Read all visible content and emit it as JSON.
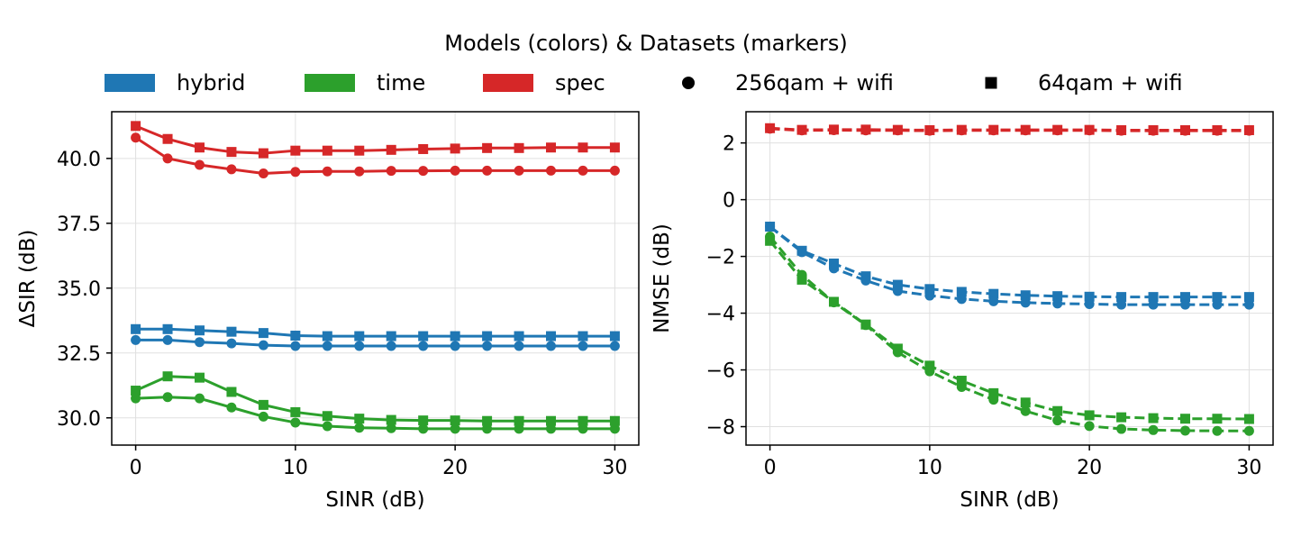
{
  "legend": {
    "title": "Models (colors) & Datasets (markers)",
    "models": [
      {
        "label": "hybrid",
        "color": "#1f77b4"
      },
      {
        "label": "time",
        "color": "#2ca02c"
      },
      {
        "label": "spec",
        "color": "#d62728"
      }
    ],
    "datasets": [
      {
        "label": "256qam + wifi",
        "marker": "circle"
      },
      {
        "label": "64qam + wifi",
        "marker": "square"
      }
    ]
  },
  "chart_data": [
    {
      "type": "line",
      "xlabel": "SINR (dB)",
      "ylabel": "ΔSIR (dB)",
      "xlim": [
        -1.5,
        31.5
      ],
      "ylim": [
        28.95,
        41.8
      ],
      "xticks": [
        0,
        10,
        20,
        30
      ],
      "yticks": [
        30.0,
        32.5,
        35.0,
        37.5,
        40.0
      ],
      "ytick_labels": [
        "30.0",
        "32.5",
        "35.0",
        "37.5",
        "40.0"
      ],
      "line_style": "solid",
      "grid": true,
      "x": [
        0,
        2,
        4,
        6,
        8,
        10,
        12,
        14,
        16,
        18,
        20,
        22,
        24,
        26,
        28,
        30
      ],
      "series": [
        {
          "model": "spec",
          "dataset": "64qam + wifi",
          "marker": "square",
          "color": "#d62728",
          "values": [
            41.25,
            40.75,
            40.42,
            40.25,
            40.2,
            40.3,
            40.3,
            40.3,
            40.33,
            40.36,
            40.38,
            40.4,
            40.4,
            40.42,
            40.42,
            40.42
          ]
        },
        {
          "model": "spec",
          "dataset": "256qam + wifi",
          "marker": "circle",
          "color": "#d62728",
          "values": [
            40.8,
            40.0,
            39.75,
            39.58,
            39.42,
            39.48,
            39.5,
            39.5,
            39.52,
            39.52,
            39.53,
            39.53,
            39.53,
            39.53,
            39.53,
            39.53
          ]
        },
        {
          "model": "hybrid",
          "dataset": "64qam + wifi",
          "marker": "square",
          "color": "#1f77b4",
          "values": [
            33.42,
            33.42,
            33.37,
            33.32,
            33.27,
            33.17,
            33.15,
            33.15,
            33.15,
            33.15,
            33.15,
            33.15,
            33.15,
            33.15,
            33.15,
            33.15
          ]
        },
        {
          "model": "hybrid",
          "dataset": "256qam + wifi",
          "marker": "circle",
          "color": "#1f77b4",
          "values": [
            33.0,
            33.0,
            32.92,
            32.87,
            32.8,
            32.77,
            32.77,
            32.77,
            32.77,
            32.77,
            32.77,
            32.77,
            32.77,
            32.77,
            32.77,
            32.77
          ]
        },
        {
          "model": "time",
          "dataset": "64qam + wifi",
          "marker": "square",
          "color": "#2ca02c",
          "values": [
            31.05,
            31.6,
            31.55,
            31.0,
            30.5,
            30.22,
            30.07,
            29.97,
            29.92,
            29.9,
            29.9,
            29.88,
            29.88,
            29.88,
            29.88,
            29.88
          ]
        },
        {
          "model": "time",
          "dataset": "256qam + wifi",
          "marker": "circle",
          "color": "#2ca02c",
          "values": [
            30.75,
            30.8,
            30.75,
            30.4,
            30.05,
            29.82,
            29.68,
            29.62,
            29.6,
            29.58,
            29.58,
            29.58,
            29.58,
            29.58,
            29.58,
            29.58
          ]
        }
      ]
    },
    {
      "type": "line",
      "xlabel": "SINR (dB)",
      "ylabel": "NMSE (dB)",
      "xlim": [
        -1.5,
        31.5
      ],
      "ylim": [
        -8.65,
        3.1
      ],
      "xticks": [
        0,
        10,
        20,
        30
      ],
      "yticks": [
        -8,
        -6,
        -4,
        -2,
        0,
        2
      ],
      "ytick_labels": [
        "−8",
        "−6",
        "−4",
        "−2",
        "0",
        "2"
      ],
      "line_style": "dashed",
      "grid": true,
      "x": [
        0,
        2,
        4,
        6,
        8,
        10,
        12,
        14,
        16,
        18,
        20,
        22,
        24,
        26,
        28,
        30
      ],
      "series": [
        {
          "model": "spec",
          "dataset": "64qam + wifi",
          "marker": "square",
          "color": "#d62728",
          "values": [
            2.52,
            2.46,
            2.47,
            2.47,
            2.46,
            2.45,
            2.46,
            2.46,
            2.46,
            2.46,
            2.46,
            2.45,
            2.45,
            2.45,
            2.45,
            2.45
          ]
        },
        {
          "model": "spec",
          "dataset": "256qam + wifi",
          "marker": "circle",
          "color": "#d62728",
          "values": [
            2.5,
            2.44,
            2.45,
            2.44,
            2.44,
            2.43,
            2.44,
            2.44,
            2.44,
            2.44,
            2.44,
            2.43,
            2.43,
            2.43,
            2.43,
            2.43
          ]
        },
        {
          "model": "hybrid",
          "dataset": "64qam + wifi",
          "marker": "square",
          "color": "#1f77b4",
          "values": [
            -0.95,
            -1.8,
            -2.25,
            -2.7,
            -3.0,
            -3.15,
            -3.25,
            -3.32,
            -3.37,
            -3.4,
            -3.42,
            -3.43,
            -3.43,
            -3.43,
            -3.43,
            -3.43
          ]
        },
        {
          "model": "hybrid",
          "dataset": "256qam + wifi",
          "marker": "circle",
          "color": "#1f77b4",
          "values": [
            -0.95,
            -1.85,
            -2.42,
            -2.85,
            -3.22,
            -3.38,
            -3.5,
            -3.58,
            -3.63,
            -3.66,
            -3.68,
            -3.7,
            -3.7,
            -3.7,
            -3.7,
            -3.7
          ]
        },
        {
          "model": "time",
          "dataset": "64qam + wifi",
          "marker": "square",
          "color": "#2ca02c",
          "values": [
            -1.45,
            -2.82,
            -3.6,
            -4.4,
            -5.25,
            -5.85,
            -6.38,
            -6.82,
            -7.15,
            -7.45,
            -7.6,
            -7.67,
            -7.7,
            -7.72,
            -7.72,
            -7.73
          ]
        },
        {
          "model": "time",
          "dataset": "256qam + wifi",
          "marker": "circle",
          "color": "#2ca02c",
          "values": [
            -1.3,
            -2.65,
            -3.62,
            -4.42,
            -5.38,
            -6.05,
            -6.6,
            -7.05,
            -7.45,
            -7.78,
            -7.98,
            -8.08,
            -8.12,
            -8.14,
            -8.15,
            -8.15
          ]
        }
      ]
    }
  ]
}
